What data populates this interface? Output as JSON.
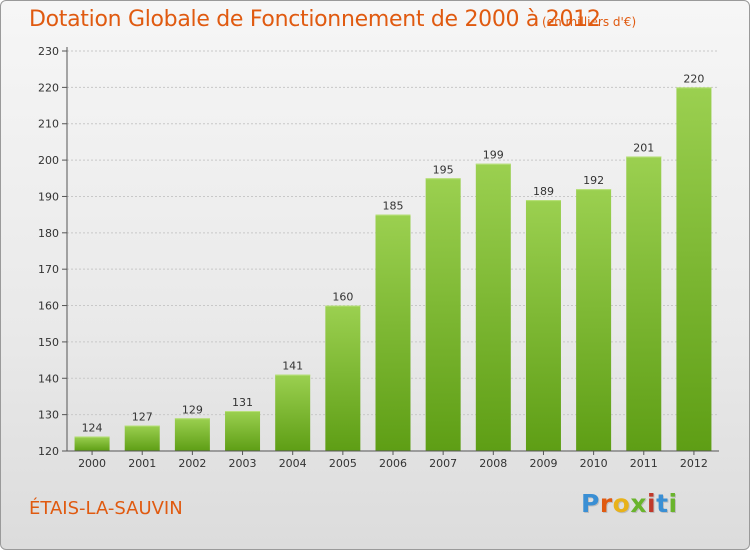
{
  "title": "Dotation Globale de Fonctionnement de 2000 à 2012",
  "subtitle": "(en milliers d'€)",
  "city": "ÉTAIS-LA-SAUVIN",
  "logo": {
    "text": "Proxiti",
    "colors": [
      "#3a8fd4",
      "#e05a10",
      "#e8b21a",
      "#6ab42d",
      "#c0392b",
      "#3a8fd4",
      "#6ab42d"
    ]
  },
  "colors": {
    "accent": "#e05a10",
    "bar_top": "#9bd050",
    "bar_bottom": "#5e9e15",
    "axis": "#555555",
    "grid": "#c8c8c8"
  },
  "chart_data": {
    "type": "bar",
    "categories": [
      "2000",
      "2001",
      "2002",
      "2003",
      "2004",
      "2005",
      "2006",
      "2007",
      "2008",
      "2009",
      "2010",
      "2011",
      "2012"
    ],
    "values": [
      124,
      127,
      129,
      131,
      141,
      160,
      185,
      195,
      199,
      189,
      192,
      201,
      220
    ],
    "data_labels": [
      "124",
      "127",
      "129",
      "131",
      "141",
      "160",
      "185",
      "195",
      "199",
      "189",
      "192",
      "201",
      "220"
    ],
    "yticks": [
      120,
      130,
      140,
      150,
      160,
      170,
      180,
      190,
      200,
      210,
      220,
      230
    ],
    "ylim": [
      120,
      230
    ],
    "grid": true,
    "legend": "none"
  }
}
